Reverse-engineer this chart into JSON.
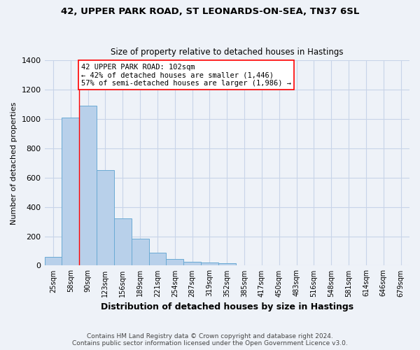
{
  "title1": "42, UPPER PARK ROAD, ST LEONARDS-ON-SEA, TN37 6SL",
  "title2": "Size of property relative to detached houses in Hastings",
  "xlabel": "Distribution of detached houses by size in Hastings",
  "ylabel": "Number of detached properties",
  "footnote1": "Contains HM Land Registry data © Crown copyright and database right 2024.",
  "footnote2": "Contains public sector information licensed under the Open Government Licence v3.0.",
  "categories": [
    "25sqm",
    "58sqm",
    "90sqm",
    "123sqm",
    "156sqm",
    "189sqm",
    "221sqm",
    "254sqm",
    "287sqm",
    "319sqm",
    "352sqm",
    "385sqm",
    "417sqm",
    "450sqm",
    "483sqm",
    "516sqm",
    "548sqm",
    "581sqm",
    "614sqm",
    "646sqm",
    "679sqm"
  ],
  "values": [
    60,
    1010,
    1090,
    650,
    320,
    185,
    88,
    45,
    28,
    22,
    15,
    0,
    0,
    0,
    0,
    0,
    0,
    0,
    0,
    0,
    0
  ],
  "bar_color": "#b8d0ea",
  "bar_edge_color": "#6aaad4",
  "grid_color": "#c8d4e8",
  "background_color": "#eef2f8",
  "vline_x": 1.5,
  "vline_color": "red",
  "annotation_text": "42 UPPER PARK ROAD: 102sqm\n← 42% of detached houses are smaller (1,446)\n57% of semi-detached houses are larger (1,986) →",
  "annotation_box_color": "white",
  "annotation_box_edge": "red",
  "ylim": [
    0,
    1400
  ],
  "yticks": [
    0,
    200,
    400,
    600,
    800,
    1000,
    1200,
    1400
  ]
}
